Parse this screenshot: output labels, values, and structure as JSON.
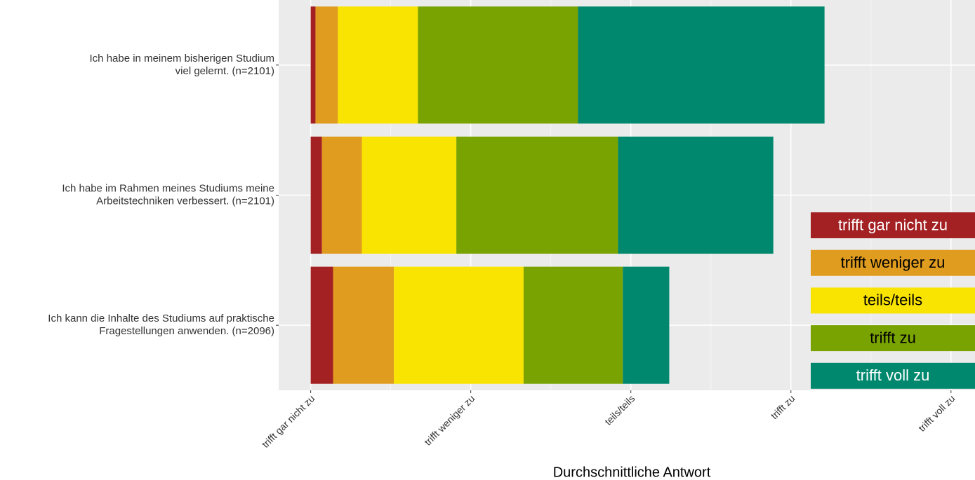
{
  "chart_data": {
    "type": "stacked-barh",
    "categories": [
      "Ich habe in meinem bisherigen Studium\nviel gelernt. (n=2101)",
      "Ich habe im Rahmen meines Studiums meine\nArbeitstechniken verbessert. (n=2101)",
      "Ich kann die Inhalte des Studiums auf praktische\nFragestellungen anwenden. (n=2096)"
    ],
    "series": [
      {
        "name": "trifft gar nicht zu",
        "color": "#a32023",
        "values": [
          0.03,
          0.07,
          0.14
        ]
      },
      {
        "name": "trifft weniger zu",
        "color": "#e09c1f",
        "values": [
          0.14,
          0.25,
          0.38
        ]
      },
      {
        "name": "teils/teils",
        "color": "#f9e300",
        "values": [
          0.5,
          0.59,
          0.81
        ]
      },
      {
        "name": "trifft zu",
        "color": "#79a300",
        "values": [
          1.0,
          1.01,
          0.62
        ]
      },
      {
        "name": "trifft voll zu",
        "color": "#00886e",
        "values": [
          1.54,
          0.97,
          0.29
        ]
      }
    ],
    "xlabel": "Durchschnittliche Antwort",
    "xlim": [
      -0.2,
      4.15
    ],
    "xticks": [
      {
        "value": 0,
        "label": "trifft gar nicht zu"
      },
      {
        "value": 1,
        "label": "trifft weniger zu"
      },
      {
        "value": 2,
        "label": "teils/teils"
      },
      {
        "value": 3,
        "label": "trifft zu"
      },
      {
        "value": 4,
        "label": "trifft voll zu"
      }
    ],
    "grid": true,
    "legend": "right"
  }
}
